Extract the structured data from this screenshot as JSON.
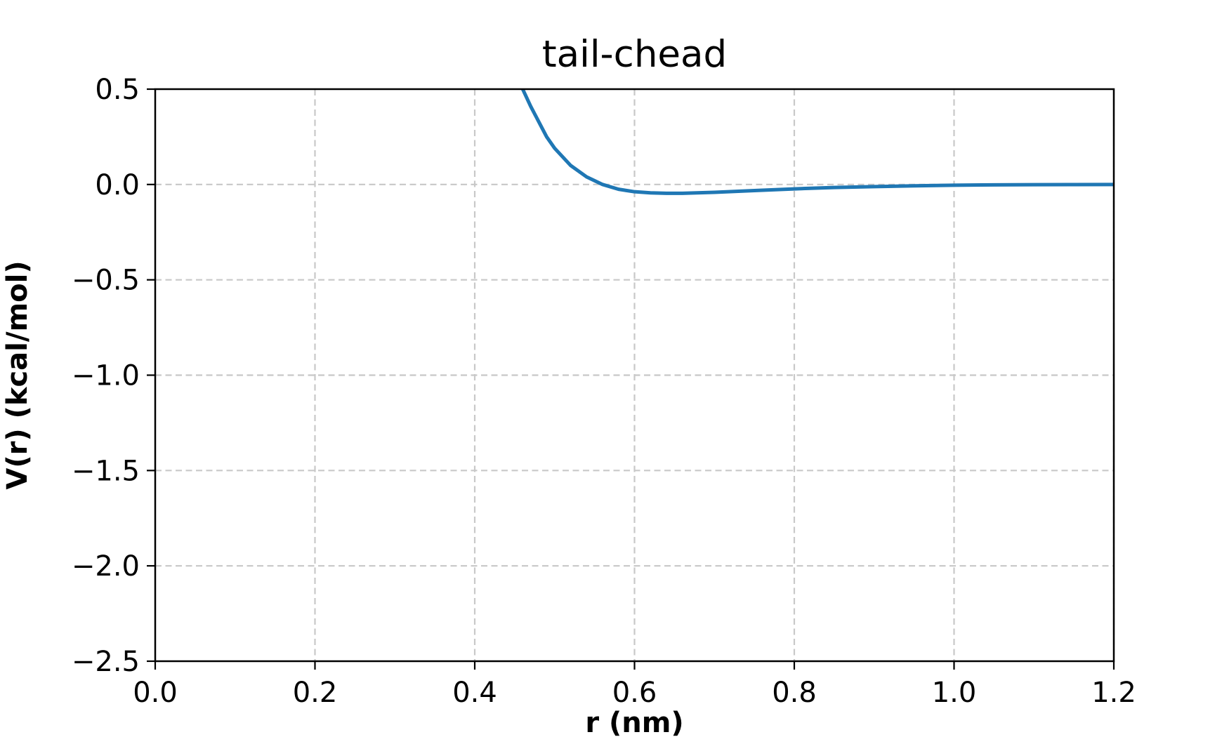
{
  "chart_data": {
    "type": "line",
    "title": "tail-chead",
    "xlabel": "r (nm)",
    "ylabel": "V(r) (kcal/mol)",
    "xlim": [
      0.0,
      1.2
    ],
    "ylim": [
      -2.5,
      0.5
    ],
    "x_ticks": [
      0.0,
      0.2,
      0.4,
      0.6,
      0.8,
      1.0,
      1.2
    ],
    "x_tick_labels": [
      "0.0",
      "0.2",
      "0.4",
      "0.6",
      "0.8",
      "1.0",
      "1.2"
    ],
    "y_ticks": [
      0.5,
      0.0,
      -0.5,
      -1.0,
      -1.5,
      -2.0,
      -2.5
    ],
    "y_tick_labels": [
      "0.5",
      "0.0",
      "−0.5",
      "−1.0",
      "−1.5",
      "−2.0",
      "−2.5"
    ],
    "grid": true,
    "grid_style": "dashed",
    "series": [
      {
        "color": "#1f77b4",
        "x": [
          0.46,
          0.47,
          0.48,
          0.49,
          0.5,
          0.52,
          0.54,
          0.56,
          0.58,
          0.6,
          0.62,
          0.64,
          0.66,
          0.7,
          0.75,
          0.8,
          0.85,
          0.9,
          0.95,
          1.0,
          1.05,
          1.1,
          1.15,
          1.2
        ],
        "y": [
          0.5,
          0.41,
          0.33,
          0.25,
          0.19,
          0.1,
          0.04,
          0.0,
          -0.025,
          -0.038,
          -0.044,
          -0.046,
          -0.046,
          -0.041,
          -0.032,
          -0.023,
          -0.016,
          -0.011,
          -0.007,
          -0.004,
          -0.002,
          -0.001,
          -0.0005,
          0.0
        ]
      }
    ]
  }
}
